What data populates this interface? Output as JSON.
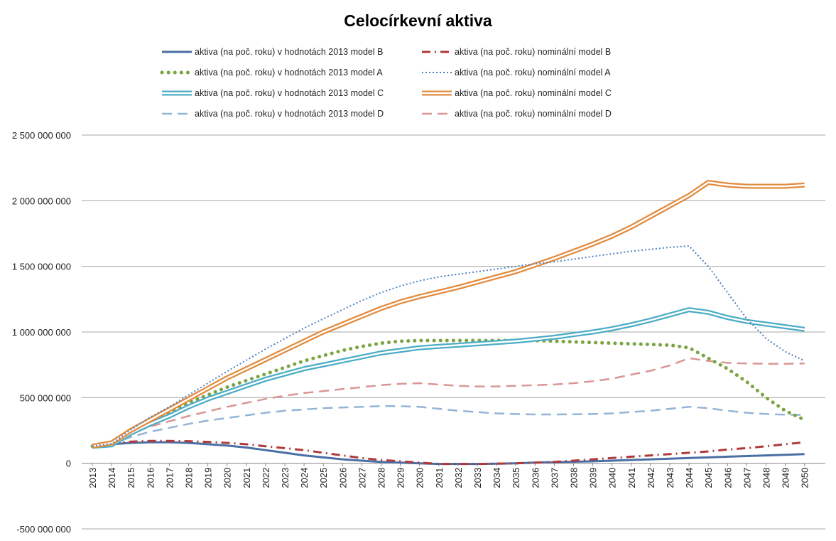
{
  "chart_data": {
    "type": "line",
    "title": "Celocírkevní aktiva",
    "xlabel": "",
    "ylabel": "",
    "ylim": [
      -500000000,
      2500000000
    ],
    "yticks": [
      2500000000,
      2000000000,
      1500000000,
      1000000000,
      500000000,
      0,
      -500000000
    ],
    "ytick_labels": [
      "2 500 000 000",
      "2 000 000 000",
      "1 500 000 000",
      "1 000 000 000",
      "500 000 000",
      "0",
      "-500 000 000"
    ],
    "grid": true,
    "legend_position": "top",
    "categories": [
      "2013",
      "2014",
      "2015",
      "2016",
      "2017",
      "2018",
      "2019",
      "2020",
      "2021",
      "2022",
      "2023",
      "2024",
      "2025",
      "2026",
      "2027",
      "2028",
      "2029",
      "2030",
      "2031",
      "2032",
      "2033",
      "2034",
      "2035",
      "2036",
      "2037",
      "2038",
      "2039",
      "2040",
      "2041",
      "2042",
      "2043",
      "2044",
      "2045",
      "2046",
      "2047",
      "2048",
      "2049",
      "2050"
    ],
    "series": [
      {
        "name": "aktiva (na poč. roku) v hodnotách 2013 model B",
        "color": "#4a6fa5",
        "style": "solid",
        "values": [
          130,
          145,
          155,
          160,
          160,
          155,
          145,
          135,
          120,
          100,
          80,
          60,
          45,
          30,
          20,
          10,
          5,
          0,
          -5,
          -5,
          -5,
          -3,
          0,
          5,
          8,
          12,
          15,
          20,
          25,
          30,
          35,
          40,
          45,
          50,
          55,
          60,
          65,
          70
        ]
      },
      {
        "name": "aktiva (na poč. roku) nominální model B",
        "color": "#b03a3a",
        "style": "dashdot",
        "values": [
          130,
          150,
          165,
          170,
          170,
          168,
          163,
          155,
          145,
          130,
          115,
          100,
          80,
          60,
          40,
          25,
          15,
          5,
          -5,
          -5,
          -5,
          -3,
          0,
          5,
          10,
          20,
          30,
          40,
          50,
          60,
          70,
          80,
          90,
          105,
          115,
          130,
          145,
          160
        ]
      },
      {
        "name": "aktiva (na poč. roku) v hodnotách 2013 model A",
        "color": "#7aa342",
        "style": "dots",
        "values": [
          130,
          145,
          240,
          320,
          390,
          460,
          520,
          580,
          630,
          680,
          730,
          780,
          820,
          860,
          890,
          915,
          930,
          935,
          935,
          935,
          935,
          935,
          935,
          935,
          930,
          925,
          920,
          915,
          910,
          905,
          900,
          880,
          800,
          720,
          620,
          500,
          400,
          330
        ]
      },
      {
        "name": "aktiva (na poč. roku) nominální model A",
        "color": "#4f81bd",
        "style": "dotted",
        "values": [
          130,
          150,
          255,
          350,
          430,
          520,
          610,
          700,
          785,
          870,
          950,
          1030,
          1100,
          1170,
          1240,
          1300,
          1350,
          1390,
          1420,
          1440,
          1460,
          1480,
          1500,
          1520,
          1535,
          1555,
          1575,
          1595,
          1615,
          1630,
          1645,
          1655,
          1500,
          1300,
          1100,
          950,
          850,
          780
        ]
      },
      {
        "name": "aktiva (na poč. roku) v hodnotách 2013 model C",
        "color": "#4bacc6",
        "style": "double",
        "values": [
          130,
          140,
          230,
          300,
          360,
          430,
          490,
          540,
          590,
          640,
          680,
          720,
          750,
          780,
          810,
          840,
          860,
          880,
          890,
          900,
          910,
          920,
          930,
          945,
          960,
          980,
          1000,
          1025,
          1055,
          1090,
          1130,
          1170,
          1150,
          1110,
          1080,
          1060,
          1040,
          1020
        ]
      },
      {
        "name": "aktiva (na poč. roku) nominální model C",
        "color": "#e38a3c",
        "style": "double",
        "values": [
          130,
          155,
          250,
          330,
          410,
          490,
          570,
          650,
          720,
          790,
          860,
          930,
          1000,
          1060,
          1120,
          1180,
          1230,
          1270,
          1305,
          1340,
          1380,
          1420,
          1460,
          1510,
          1560,
          1615,
          1670,
          1730,
          1800,
          1880,
          1960,
          2040,
          2140,
          2120,
          2110,
          2110,
          2110,
          2120
        ]
      },
      {
        "name": "aktiva (na poč. roku) v hodnotách 2013 model D",
        "color": "#95b3d7",
        "style": "dashed",
        "values": [
          130,
          145,
          200,
          240,
          270,
          300,
          325,
          345,
          365,
          385,
          400,
          410,
          420,
          425,
          430,
          435,
          435,
          430,
          415,
          400,
          390,
          380,
          375,
          372,
          372,
          373,
          375,
          380,
          390,
          400,
          415,
          430,
          420,
          400,
          385,
          375,
          370,
          368
        ]
      },
      {
        "name": "aktiva (na poč. roku) nominální model D",
        "color": "#da9694",
        "style": "dashed",
        "values": [
          130,
          150,
          225,
          280,
          320,
          360,
          395,
          430,
          460,
          490,
          515,
          535,
          550,
          565,
          580,
          595,
          605,
          610,
          600,
          590,
          585,
          585,
          590,
          595,
          600,
          610,
          625,
          645,
          675,
          705,
          745,
          800,
          780,
          765,
          760,
          758,
          758,
          760
        ]
      }
    ]
  }
}
